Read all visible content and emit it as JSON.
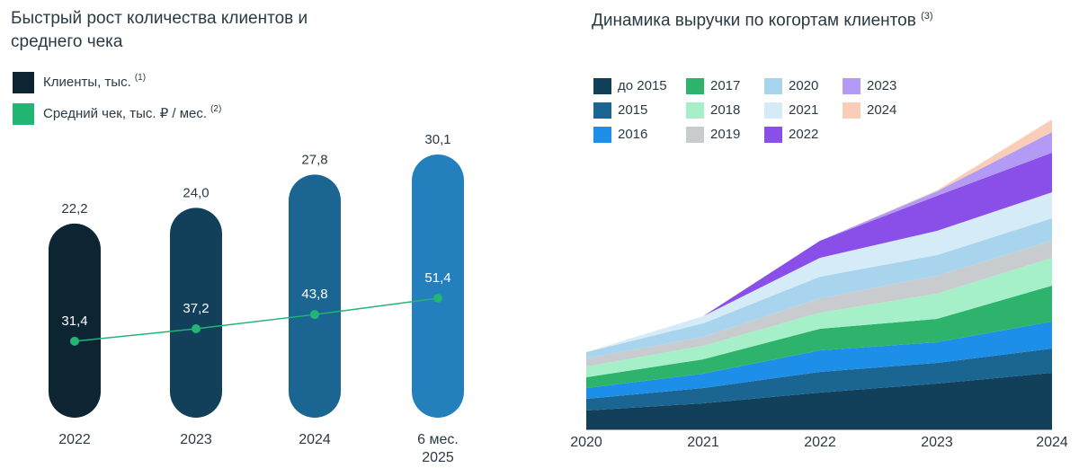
{
  "chart_data": [
    {
      "type": "bar_line",
      "title": "Быстрый рост количества клиентов и среднего чека",
      "categories": [
        "2022",
        "2023",
        "2024",
        "6 мес. 2025"
      ],
      "series": [
        {
          "name": "Клиенты, тыс.",
          "note": "(1)",
          "type": "bar",
          "color": "#0d2433",
          "colors": [
            "#0d2433",
            "#123f5a",
            "#1b6592",
            "#2480bd"
          ],
          "values": [
            22.2,
            24.0,
            27.8,
            30.1
          ],
          "value_labels": [
            "22,2",
            "24,0",
            "27,8",
            "30,1"
          ]
        },
        {
          "name": "Средний чек, тыс. ₽ / мес.",
          "note": "(2)",
          "type": "line",
          "color": "#22b573",
          "values": [
            31.4,
            37.2,
            43.8,
            51.4
          ],
          "value_labels": [
            "31,4",
            "37,2",
            "43,8",
            "51,4"
          ]
        }
      ]
    },
    {
      "type": "stacked_area",
      "title": "Динамика выручки по когортам клиентов",
      "title_note": "(3)",
      "categories": [
        "2020",
        "2021",
        "2022",
        "2023",
        "2024"
      ],
      "series": [
        {
          "name": "до 2015",
          "color": "#123f5a",
          "values": [
            21,
            29,
            41,
            51,
            63
          ]
        },
        {
          "name": "2015",
          "color": "#1b6592",
          "values": [
            13,
            17,
            23,
            23,
            27
          ]
        },
        {
          "name": "2016",
          "color": "#1d8fe8",
          "values": [
            12,
            16,
            24,
            23,
            30
          ]
        },
        {
          "name": "2017",
          "color": "#2db36b",
          "values": [
            12,
            16,
            24,
            26,
            40
          ]
        },
        {
          "name": "2018",
          "color": "#a5f0c8",
          "values": [
            12,
            15,
            18,
            28,
            31
          ]
        },
        {
          "name": "2019",
          "color": "#c8cccf",
          "values": [
            9,
            10,
            16,
            20,
            19
          ]
        },
        {
          "name": "2020",
          "color": "#a8d4ee",
          "values": [
            7,
            15,
            24,
            23,
            25
          ]
        },
        {
          "name": "2021",
          "color": "#d6ebf8",
          "values": [
            0,
            8,
            21,
            27,
            29
          ]
        },
        {
          "name": "2022",
          "color": "#8a4fe8",
          "values": [
            0,
            0,
            19,
            39,
            44
          ]
        },
        {
          "name": "2023",
          "color": "#b39af5",
          "values": [
            0,
            0,
            0,
            5,
            23
          ]
        },
        {
          "name": "2024",
          "color": "#f9cdb8",
          "values": [
            0,
            0,
            0,
            1,
            14
          ]
        }
      ]
    }
  ]
}
